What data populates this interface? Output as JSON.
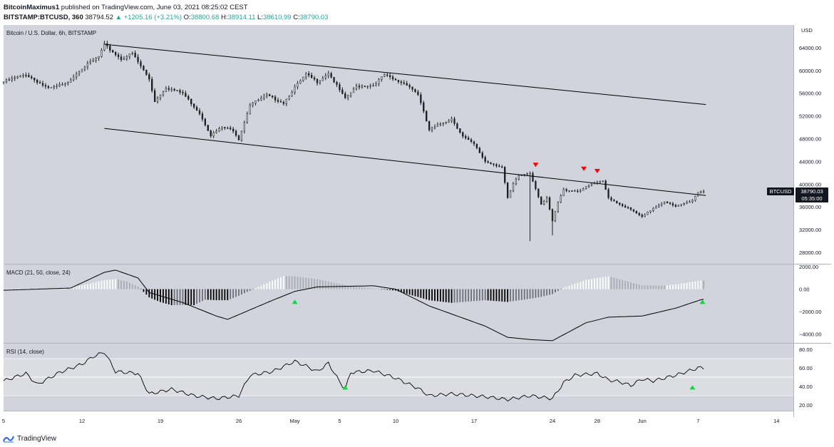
{
  "header": {
    "author": "BitcoinMaximus1",
    "published_text": "published on TradingView.com, June 03, 2021 08:25:02 CEST",
    "symbol": "BITSTAMP:BTCUSD, 360",
    "last": "38794.52",
    "change": "+1205.16 (+3.21%)",
    "o_label": "O:",
    "o": "38800.68",
    "h_label": "H:",
    "h": "38914.11",
    "l_label": "L:",
    "l": "38610.99",
    "c_label": "C:",
    "c": "38790.03"
  },
  "colors": {
    "pane_bg": "#d1d4dc",
    "candle": "#1e1e1e",
    "marker_down": "#ff0000",
    "marker_up": "#00e03c",
    "hist_pos_rising": "#ffffff",
    "hist_pos_falling": "#a9acb4",
    "hist_neg_falling": "#000000",
    "hist_neg_rising": "#6d7078"
  },
  "footer": {
    "brand": "TradingView"
  },
  "chart_data": [
    {
      "type": "candlestick",
      "title": "Bitcoin / U.S. Dollar, 6h, BITSTAMP",
      "currency": "USD",
      "ylim": [
        26000,
        68000
      ],
      "y_ticks": [
        "28000.00",
        "32000.00",
        "36000.00",
        "40000.00",
        "44000.00",
        "48000.00",
        "52000.00",
        "56000.00",
        "60000.00",
        "64000.00"
      ],
      "y_tick_values": [
        28000,
        32000,
        36000,
        40000,
        44000,
        48000,
        52000,
        56000,
        60000,
        64000
      ],
      "price_label": {
        "symbol": "BTCUSD",
        "value": "38790.03",
        "countdown": "05:35:00",
        "price": 38790
      },
      "x_ticks": [
        "5",
        "12",
        "19",
        "26",
        "May",
        "5",
        "10",
        "17",
        "24",
        "28",
        "Jun",
        "7",
        "14"
      ],
      "x_tick_days": [
        0,
        7,
        14,
        21,
        26,
        30,
        35,
        42,
        49,
        53,
        57,
        62,
        69
      ],
      "close_keypoints": [
        [
          0,
          58000
        ],
        [
          2,
          59300
        ],
        [
          4,
          56800
        ],
        [
          5.5,
          57600
        ],
        [
          7,
          60400
        ],
        [
          8.5,
          62400
        ],
        [
          9,
          64500
        ],
        [
          10.5,
          62000
        ],
        [
          11.5,
          63000
        ],
        [
          13,
          58500
        ],
        [
          13.5,
          54600
        ],
        [
          14.5,
          57000
        ],
        [
          16,
          56000
        ],
        [
          17.5,
          52500
        ],
        [
          18.5,
          48600
        ],
        [
          19.5,
          50000
        ],
        [
          20.5,
          49500
        ],
        [
          21,
          47900
        ],
        [
          22,
          54000
        ],
        [
          23.5,
          55600
        ],
        [
          25,
          54300
        ],
        [
          26,
          57000
        ],
        [
          27,
          59300
        ],
        [
          28,
          58000
        ],
        [
          29,
          59600
        ],
        [
          30.5,
          55000
        ],
        [
          31.5,
          57200
        ],
        [
          33,
          57400
        ],
        [
          34,
          59200
        ],
        [
          35,
          58200
        ],
        [
          36,
          57600
        ],
        [
          37,
          55800
        ],
        [
          38,
          49500
        ],
        [
          39,
          50600
        ],
        [
          40,
          51500
        ],
        [
          41,
          48400
        ],
        [
          42,
          47000
        ],
        [
          43,
          44000
        ],
        [
          44.5,
          43000
        ],
        [
          45,
          37500
        ],
        [
          45.5,
          40000
        ],
        [
          46,
          41500
        ],
        [
          47,
          42000
        ],
        [
          48,
          36500
        ],
        [
          48.5,
          37500
        ],
        [
          49,
          33500
        ],
        [
          49.5,
          36800
        ],
        [
          50,
          39000
        ],
        [
          51.3,
          38800
        ],
        [
          52.5,
          40000
        ],
        [
          53.5,
          40500
        ],
        [
          54,
          37600
        ],
        [
          55,
          36500
        ],
        [
          56,
          35500
        ],
        [
          57,
          34200
        ],
        [
          58,
          35800
        ],
        [
          59,
          37000
        ],
        [
          60,
          36000
        ],
        [
          61.5,
          37200
        ],
        [
          62,
          38600
        ],
        [
          62.4,
          38790
        ]
      ],
      "lows": [
        [
          47,
          30000
        ],
        [
          49,
          31000
        ]
      ],
      "channel_upper": [
        [
          9,
          64600
        ],
        [
          62.7,
          54000
        ]
      ],
      "channel_lower": [
        [
          9,
          49800
        ],
        [
          62.7,
          38000
        ]
      ],
      "markers_down": [
        [
          47.5,
          43400
        ],
        [
          51.8,
          42700
        ],
        [
          53,
          42300
        ]
      ]
    },
    {
      "type": "macd",
      "title": "MACD (21, 50, close, 24)",
      "ylim": [
        -4800,
        2200
      ],
      "y_ticks": [
        "2000.00",
        "0.00",
        "−2000.00",
        "−4000.00"
      ],
      "y_tick_values": [
        2000,
        0,
        -2000,
        -4000
      ],
      "macd_keypoints": [
        [
          0,
          -100
        ],
        [
          6,
          100
        ],
        [
          9,
          1500
        ],
        [
          10,
          1700
        ],
        [
          12,
          1000
        ],
        [
          13,
          -300
        ],
        [
          16,
          -1200
        ],
        [
          19,
          -2400
        ],
        [
          20,
          -2700
        ],
        [
          24,
          -1000
        ],
        [
          26,
          -200
        ],
        [
          28,
          200
        ],
        [
          33,
          300
        ],
        [
          35,
          0
        ],
        [
          38,
          -1500
        ],
        [
          43,
          -3300
        ],
        [
          45,
          -4300
        ],
        [
          47,
          -4500
        ],
        [
          49,
          -4600
        ],
        [
          52,
          -3000
        ],
        [
          54,
          -2500
        ],
        [
          57,
          -2400
        ],
        [
          60,
          -1700
        ],
        [
          62.4,
          -900
        ]
      ],
      "markers_up": [
        [
          26,
          -500
        ],
        [
          62.4,
          -500
        ]
      ]
    },
    {
      "type": "rsi",
      "title": "RSI (14, close)",
      "ylim": [
        14,
        86
      ],
      "y_ticks": [
        "80.00",
        "60.00",
        "40.00",
        "20.00"
      ],
      "y_tick_values": [
        80,
        60,
        40,
        20
      ],
      "band": [
        30,
        70
      ],
      "mid": 50,
      "rsi_keypoints": [
        [
          0,
          46
        ],
        [
          2,
          54
        ],
        [
          3,
          42
        ],
        [
          5,
          55
        ],
        [
          7,
          64
        ],
        [
          8,
          72
        ],
        [
          9,
          77
        ],
        [
          10,
          56
        ],
        [
          12,
          54
        ],
        [
          13,
          32
        ],
        [
          15,
          37
        ],
        [
          17,
          30
        ],
        [
          19,
          27
        ],
        [
          21,
          30
        ],
        [
          22,
          52
        ],
        [
          24,
          56
        ],
        [
          26,
          67
        ],
        [
          27,
          62
        ],
        [
          28,
          56
        ],
        [
          29,
          65
        ],
        [
          30,
          45
        ],
        [
          30.5,
          37
        ],
        [
          31,
          55
        ],
        [
          33,
          57
        ],
        [
          35,
          49
        ],
        [
          37,
          38
        ],
        [
          38,
          30
        ],
        [
          40,
          32
        ],
        [
          43,
          29
        ],
        [
          45,
          26
        ],
        [
          47,
          30
        ],
        [
          49,
          27
        ],
        [
          50,
          44
        ],
        [
          51,
          52
        ],
        [
          53,
          54
        ],
        [
          54,
          47
        ],
        [
          55,
          45
        ],
        [
          56,
          41
        ],
        [
          57,
          48
        ],
        [
          58,
          46
        ],
        [
          60,
          52
        ],
        [
          62,
          60
        ],
        [
          62.4,
          60
        ]
      ],
      "markers_up": [
        [
          30.5,
          39
        ],
        [
          61.5,
          39
        ]
      ]
    }
  ]
}
